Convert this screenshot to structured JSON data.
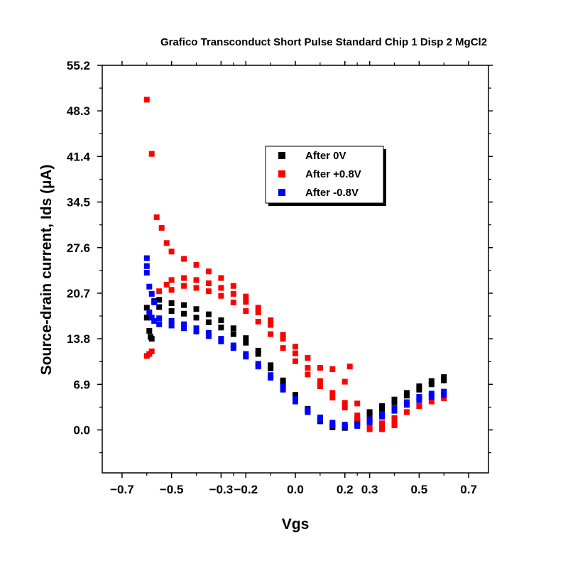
{
  "chart_data": {
    "type": "scatter",
    "title": "Grafico Transconduct Short Pulse Standard Chip 1 Disp 2 MgCl2",
    "xlabel": "Vgs",
    "ylabel": "Source-drain current, Ids (µA)",
    "xlim": [
      -0.78,
      0.78
    ],
    "ylim": [
      -6.5,
      55.2
    ],
    "x_ticks": [
      -0.7,
      -0.5,
      -0.3,
      -0.2,
      0.0,
      0.2,
      0.3,
      0.5,
      0.7
    ],
    "x_tick_labels": [
      "−0.7",
      "−0.5",
      "−0.3",
      "−0.2",
      "0.0",
      "0.2",
      "0.3",
      "0.5",
      "0.7"
    ],
    "y_ticks": [
      0.0,
      6.9,
      13.8,
      20.7,
      27.6,
      34.5,
      41.4,
      48.3,
      55.2
    ],
    "y_tick_labels": [
      "0.0",
      "6.9",
      "13.8",
      "20.7",
      "27.6",
      "34.5",
      "41.4",
      "48.3",
      "55.2"
    ],
    "grid": false,
    "legend_position": "upper-center",
    "series": [
      {
        "name": "After 0V",
        "color": "#000000",
        "points": [
          [
            -0.6,
            17
          ],
          [
            -0.6,
            18.5
          ],
          [
            -0.59,
            15
          ],
          [
            -0.585,
            14.1
          ],
          [
            -0.58,
            13.8
          ],
          [
            -0.57,
            19.5
          ],
          [
            -0.55,
            19.7
          ],
          [
            -0.5,
            19.2
          ],
          [
            -0.45,
            18.9
          ],
          [
            -0.4,
            18.3
          ],
          [
            -0.35,
            17.5
          ],
          [
            -0.3,
            16.6
          ],
          [
            -0.25,
            15.4
          ],
          [
            -0.2,
            13.9
          ],
          [
            -0.15,
            12.0
          ],
          [
            -0.1,
            9.8
          ],
          [
            -0.05,
            7.5
          ],
          [
            0.0,
            5.3
          ],
          [
            0.05,
            3.2
          ],
          [
            0.1,
            1.6
          ],
          [
            0.15,
            0.6
          ],
          [
            0.2,
            0.4
          ],
          [
            0.25,
            1.4
          ],
          [
            0.3,
            2.7
          ],
          [
            0.35,
            3.6
          ],
          [
            0.4,
            4.6
          ],
          [
            0.45,
            5.6
          ],
          [
            0.5,
            6.6
          ],
          [
            0.55,
            7.4
          ],
          [
            0.6,
            8.0
          ],
          [
            -0.55,
            18.6
          ],
          [
            -0.5,
            18.0
          ],
          [
            -0.45,
            17.6
          ],
          [
            -0.4,
            17.0
          ],
          [
            -0.35,
            16.3
          ],
          [
            -0.3,
            15.5
          ],
          [
            -0.25,
            14.5
          ],
          [
            -0.2,
            13.2
          ],
          [
            -0.15,
            11.5
          ],
          [
            -0.1,
            9.3
          ],
          [
            -0.05,
            7.0
          ],
          [
            0.0,
            4.8
          ],
          [
            0.05,
            2.8
          ],
          [
            0.1,
            1.3
          ],
          [
            0.15,
            0.4
          ],
          [
            0.2,
            0.3
          ],
          [
            0.25,
            1.1
          ],
          [
            0.3,
            2.3
          ],
          [
            0.35,
            3.2
          ],
          [
            0.4,
            4.2
          ],
          [
            0.45,
            5.2
          ],
          [
            0.5,
            6.1
          ],
          [
            0.55,
            6.9
          ],
          [
            0.6,
            7.5
          ]
        ]
      },
      {
        "name": "After +0.8V",
        "color": "#ff0000",
        "points": [
          [
            -0.6,
            50.0
          ],
          [
            -0.58,
            41.8
          ],
          [
            -0.56,
            32.2
          ],
          [
            -0.54,
            30.6
          ],
          [
            -0.52,
            28.3
          ],
          [
            -0.5,
            27.0
          ],
          [
            -0.45,
            25.9
          ],
          [
            -0.4,
            25.0
          ],
          [
            -0.35,
            24.0
          ],
          [
            -0.3,
            23.0
          ],
          [
            -0.25,
            21.8
          ],
          [
            -0.2,
            20.2
          ],
          [
            -0.15,
            18.5
          ],
          [
            -0.1,
            16.6
          ],
          [
            -0.05,
            14.4
          ],
          [
            0.0,
            12.6
          ],
          [
            0.05,
            10.9
          ],
          [
            0.1,
            9.4
          ],
          [
            0.15,
            9.2
          ],
          [
            0.2,
            7.3
          ],
          [
            0.22,
            9.6
          ],
          [
            0.25,
            4.0
          ],
          [
            0.3,
            1.4
          ],
          [
            0.35,
            1.0
          ],
          [
            0.4,
            1.8
          ],
          [
            0.45,
            2.7
          ],
          [
            0.5,
            3.6
          ],
          [
            0.55,
            4.3
          ],
          [
            0.6,
            4.8
          ],
          [
            -0.6,
            11.2
          ],
          [
            -0.59,
            11.5
          ],
          [
            -0.58,
            11.9
          ],
          [
            -0.55,
            21.0
          ],
          [
            -0.52,
            22.0
          ],
          [
            -0.5,
            22.7
          ],
          [
            -0.45,
            23.0
          ],
          [
            -0.4,
            22.7
          ],
          [
            -0.35,
            22.2
          ],
          [
            -0.3,
            21.5
          ],
          [
            -0.25,
            20.6
          ],
          [
            -0.2,
            19.4
          ],
          [
            -0.15,
            17.8
          ],
          [
            -0.1,
            15.9
          ],
          [
            -0.05,
            13.8
          ],
          [
            0.0,
            11.6
          ],
          [
            0.05,
            9.4
          ],
          [
            0.1,
            7.4
          ],
          [
            0.15,
            5.6
          ],
          [
            0.2,
            4.1
          ],
          [
            0.25,
            2.2
          ],
          [
            0.3,
            0.5
          ],
          [
            0.35,
            0.3
          ],
          [
            0.4,
            1.2
          ],
          [
            -0.5,
            21.2
          ],
          [
            -0.45,
            21.8
          ],
          [
            -0.4,
            21.5
          ],
          [
            -0.35,
            21.0
          ],
          [
            -0.3,
            20.3
          ],
          [
            -0.25,
            19.3
          ],
          [
            -0.2,
            18.0
          ],
          [
            -0.15,
            16.4
          ],
          [
            -0.1,
            14.5
          ],
          [
            -0.05,
            12.4
          ],
          [
            0.0,
            10.4
          ],
          [
            0.05,
            8.4
          ],
          [
            0.1,
            6.6
          ],
          [
            0.15,
            4.9
          ],
          [
            0.2,
            3.4
          ],
          [
            0.25,
            1.6
          ],
          [
            0.3,
            0.1
          ],
          [
            0.35,
            0.1
          ],
          [
            0.4,
            0.7
          ]
        ]
      },
      {
        "name": "After -0.8V",
        "color": "#0000ff",
        "points": [
          [
            -0.6,
            26.0
          ],
          [
            -0.6,
            24.8
          ],
          [
            -0.6,
            23.8
          ],
          [
            -0.59,
            21.7
          ],
          [
            -0.58,
            20.6
          ],
          [
            -0.57,
            19.3
          ],
          [
            -0.59,
            17.8
          ],
          [
            -0.58,
            17.0
          ],
          [
            -0.57,
            16.5
          ],
          [
            -0.55,
            16.9
          ],
          [
            -0.5,
            16.5
          ],
          [
            -0.45,
            16.0
          ],
          [
            -0.4,
            15.4
          ],
          [
            -0.35,
            14.7
          ],
          [
            -0.3,
            13.8
          ],
          [
            -0.25,
            12.8
          ],
          [
            -0.2,
            11.5
          ],
          [
            -0.15,
            10.0
          ],
          [
            -0.1,
            8.3
          ],
          [
            -0.05,
            6.5
          ],
          [
            0.0,
            4.7
          ],
          [
            0.05,
            3.1
          ],
          [
            0.1,
            1.9
          ],
          [
            0.15,
            1.1
          ],
          [
            0.2,
            0.8
          ],
          [
            0.25,
            0.9
          ],
          [
            0.3,
            1.6
          ],
          [
            0.35,
            2.4
          ],
          [
            0.4,
            3.3
          ],
          [
            0.45,
            4.2
          ],
          [
            0.5,
            5.0
          ],
          [
            0.55,
            5.5
          ],
          [
            0.6,
            5.8
          ],
          [
            -0.55,
            16.0
          ],
          [
            -0.5,
            15.8
          ],
          [
            -0.45,
            15.4
          ],
          [
            -0.4,
            14.9
          ],
          [
            -0.35,
            14.2
          ],
          [
            -0.3,
            13.4
          ],
          [
            -0.25,
            12.4
          ],
          [
            -0.2,
            11.1
          ],
          [
            -0.15,
            9.6
          ],
          [
            -0.1,
            7.9
          ],
          [
            -0.05,
            6.1
          ],
          [
            0.0,
            4.3
          ],
          [
            0.05,
            2.7
          ],
          [
            0.1,
            1.5
          ],
          [
            0.15,
            0.7
          ],
          [
            0.2,
            0.5
          ],
          [
            0.25,
            0.6
          ],
          [
            0.3,
            1.2
          ],
          [
            0.35,
            2.0
          ],
          [
            0.4,
            2.9
          ],
          [
            0.45,
            3.8
          ],
          [
            0.5,
            4.5
          ],
          [
            0.55,
            5.0
          ],
          [
            0.6,
            5.3
          ]
        ]
      }
    ]
  }
}
